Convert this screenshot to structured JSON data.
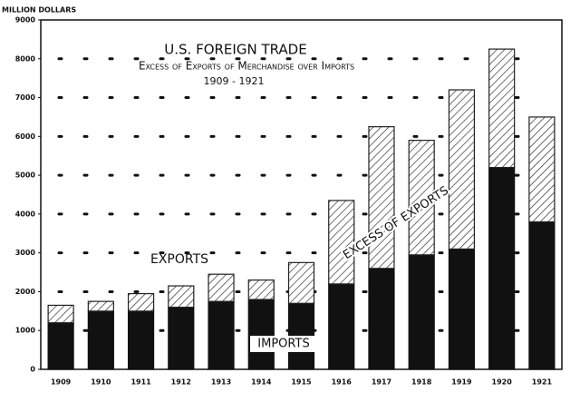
{
  "chart_data": {
    "type": "stacked_bar",
    "title": "U.S. Foreign Trade",
    "subtitle": "Excess of Exports of Merchandise over Imports",
    "period": "1909 - 1921",
    "y_label": "Million Dollars",
    "annotation": "Exports",
    "categories": [
      "1909",
      "1910",
      "1911",
      "1912",
      "1913",
      "1914",
      "1915",
      "1916",
      "1917",
      "1918",
      "1919",
      "1920",
      "1921"
    ],
    "series": [
      {
        "name": "Imports",
        "color": "#111111",
        "hatched": false,
        "values": [
          1200,
          1500,
          1500,
          1600,
          1750,
          1800,
          1700,
          2200,
          2600,
          2950,
          3100,
          5200,
          3800
        ]
      },
      {
        "name": "Excess of Exports",
        "color": "#222222",
        "hatched": true,
        "values": [
          450,
          250,
          450,
          550,
          700,
          500,
          1050,
          2150,
          3650,
          2950,
          4100,
          3050,
          2700
        ]
      }
    ],
    "ylim": [
      0,
      9000
    ],
    "yticks": [
      0,
      1000,
      2000,
      3000,
      4000,
      5000,
      6000,
      7000,
      8000,
      9000
    ],
    "grid": true
  }
}
